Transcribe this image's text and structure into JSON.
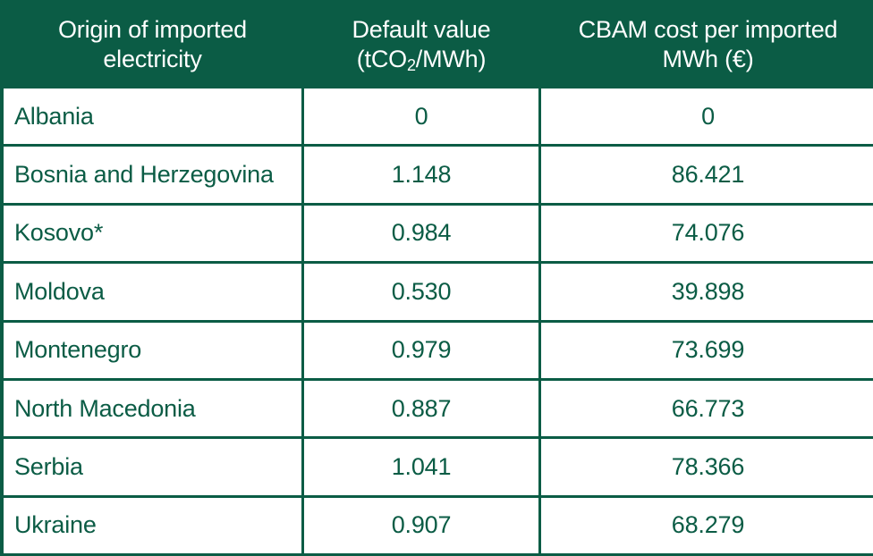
{
  "table": {
    "headers": {
      "origin_line1": "Origin of imported",
      "origin_line2": "electricity",
      "default_line1": "Default value",
      "default_pre": "(tCO",
      "default_sub": "2",
      "default_post": "/MWh)",
      "cost_line1": "CBAM cost per imported",
      "cost_line2": "MWh (€)"
    },
    "rows": [
      {
        "origin": "Albania",
        "default_value": "0",
        "cbam_cost": "0"
      },
      {
        "origin": "Bosnia and Herzegovina",
        "default_value": "1.148",
        "cbam_cost": "86.421"
      },
      {
        "origin": "Kosovo*",
        "default_value": "0.984",
        "cbam_cost": "74.076"
      },
      {
        "origin": "Moldova",
        "default_value": "0.530",
        "cbam_cost": "39.898"
      },
      {
        "origin": "Montenegro",
        "default_value": "0.979",
        "cbam_cost": "73.699"
      },
      {
        "origin": "North Macedonia",
        "default_value": "0.887",
        "cbam_cost": "66.773"
      },
      {
        "origin": "Serbia",
        "default_value": "1.041",
        "cbam_cost": "78.366"
      },
      {
        "origin": "Ukraine",
        "default_value": "0.907",
        "cbam_cost": "68.279"
      }
    ]
  },
  "colors": {
    "brand_green": "#0b5c45",
    "cell_background": "#ffffff",
    "watermark": "#eef1ef"
  }
}
